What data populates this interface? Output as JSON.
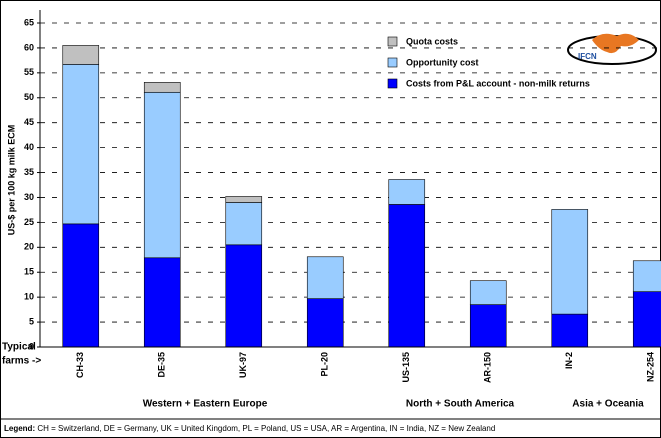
{
  "chart_data": {
    "type": "stacked_bar",
    "y_label": "US-$ per 100 kg milk ECM",
    "categories": [
      "CH-33",
      "DE-35",
      "UK-97",
      "PL-20",
      "US-135",
      "AR-150",
      "IN-2",
      "NZ-254"
    ],
    "series": [
      {
        "name": "Costs from P&L account - non-milk returns",
        "color": "#0000ff",
        "values": [
          24.7,
          17.9,
          20.5,
          9.7,
          28.6,
          8.5,
          6.6,
          11.1
        ]
      },
      {
        "name": "Opportunity cost",
        "color": "#99ccff",
        "values": [
          32.0,
          33.2,
          8.5,
          8.4,
          5.0,
          4.8,
          21.0,
          6.2
        ]
      },
      {
        "name": "Quota costs",
        "color": "#c0c0c0",
        "values": [
          3.8,
          2.0,
          1.2,
          null,
          null,
          null,
          null,
          null
        ]
      }
    ],
    "ylim": [
      0,
      65
    ],
    "yticks": [
      0,
      5,
      10,
      15,
      20,
      25,
      30,
      35,
      40,
      45,
      50,
      55,
      60,
      65
    ],
    "grid": true,
    "row_label": [
      "Typical",
      "farms ->"
    ],
    "groups": [
      "Western + Eastern Europe",
      "North + South America",
      "Asia + Oceania"
    ],
    "logo_text": "IFCN",
    "footnote_label": "Legend:",
    "footnote": " CH = Switzerland, DE = Germany, UK = United Kingdom, PL = Poland, US = USA, AR = Argentina, IN = India, NZ = New Zealand"
  }
}
